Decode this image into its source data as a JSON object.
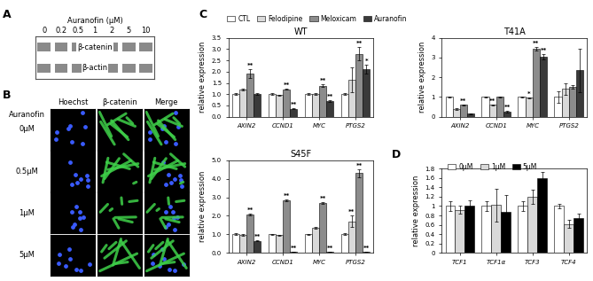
{
  "panel_labels": [
    "A",
    "B",
    "C",
    "D"
  ],
  "blot": {
    "label": "Auranofin (μM)",
    "doses": [
      "0",
      "0.2",
      "0.5",
      "1",
      "2",
      "5",
      "10"
    ],
    "rows": [
      "β-catenin",
      "β-actin"
    ]
  },
  "images": {
    "treatment": "Auranofin",
    "columns": [
      "Hoechst",
      "β-catenin",
      "Merge"
    ],
    "rows": [
      "0μM",
      "0.5μM",
      "1μM",
      "5μM"
    ]
  },
  "chart_data": [
    {
      "type": "bar",
      "title": "WT",
      "ylabel": "relative expression",
      "legend": "upper left",
      "categories": [
        "AXIN2",
        "CCND1",
        "MYC",
        "PTGS2"
      ],
      "ylim": [
        0,
        3.5
      ],
      "yticks": [
        {
          "value": 0,
          "label": "0.0"
        },
        {
          "value": 0.5,
          "label": "0.5"
        },
        {
          "value": 1,
          "label": "1.0"
        },
        {
          "value": 1.5,
          "label": "1.5"
        },
        {
          "value": 2,
          "label": "2.0"
        },
        {
          "value": 2.5,
          "label": "2.5"
        },
        {
          "value": 3,
          "label": "3.0"
        },
        {
          "value": 3.5,
          "label": "3.5"
        }
      ],
      "series": [
        {
          "name": "CTL",
          "color": "#ffffff",
          "values": [
            1.0,
            1.0,
            1.0,
            1.0
          ],
          "errors": [
            0.03,
            0.03,
            0.03,
            0.03
          ],
          "annotations": [
            null,
            null,
            null,
            null
          ]
        },
        {
          "name": "Felodipine",
          "color": "#d9d9d9",
          "values": [
            1.2,
            0.95,
            1.0,
            1.65
          ],
          "errors": [
            0.04,
            0.03,
            0.03,
            0.55
          ],
          "annotations": [
            null,
            null,
            null,
            null
          ]
        },
        {
          "name": "Meloxicam",
          "color": "#8c8c8c",
          "values": [
            1.92,
            1.22,
            1.38,
            2.8
          ],
          "errors": [
            0.2,
            0.03,
            0.05,
            0.3
          ],
          "annotations": [
            "**",
            "**",
            "**",
            "**"
          ]
        },
        {
          "name": "Auranofin",
          "color": "#3a3a3a",
          "values": [
            1.0,
            0.35,
            0.7,
            2.1
          ],
          "errors": [
            0.03,
            0.03,
            0.03,
            0.2
          ],
          "annotations": [
            null,
            "**",
            "**",
            "*"
          ]
        }
      ]
    },
    {
      "type": "bar",
      "title": "T41A",
      "ylabel": "relative expression",
      "categories": [
        "AXIN2",
        "CCND1",
        "MYC",
        "PTGS2"
      ],
      "ylim": [
        0,
        4
      ],
      "yticks": [
        0,
        1,
        2,
        3,
        4
      ],
      "series": [
        {
          "name": "CTL",
          "color": "#ffffff",
          "values": [
            1.0,
            1.0,
            1.0,
            1.0
          ],
          "errors": [
            0.03,
            0.03,
            0.03,
            0.3
          ],
          "annotations": [
            null,
            null,
            null,
            null
          ]
        },
        {
          "name": "Felodipine",
          "color": "#d9d9d9",
          "values": [
            0.38,
            0.6,
            0.95,
            1.4
          ],
          "errors": [
            0.03,
            0.03,
            0.03,
            0.3
          ],
          "annotations": [
            null,
            "**",
            "*",
            null
          ]
        },
        {
          "name": "Meloxicam",
          "color": "#8c8c8c",
          "values": [
            0.6,
            1.0,
            3.45,
            1.5
          ],
          "errors": [
            0.03,
            0.03,
            0.1,
            0.1
          ],
          "annotations": [
            "**",
            null,
            "**",
            null
          ]
        },
        {
          "name": "Auranofin",
          "color": "#3a3a3a",
          "values": [
            0.15,
            0.25,
            3.05,
            2.35
          ],
          "errors": [
            0.02,
            0.03,
            0.15,
            1.1
          ],
          "annotations": [
            null,
            "**",
            "**",
            null
          ]
        }
      ]
    },
    {
      "type": "bar",
      "title": "S45F",
      "ylabel": "relative expression",
      "categories": [
        "AXIN2",
        "CCND1",
        "MYC",
        "PTGS2"
      ],
      "ylim": [
        0,
        5
      ],
      "yticks": [
        {
          "value": 0,
          "label": "0.0"
        },
        {
          "value": 1,
          "label": "1.0"
        },
        {
          "value": 2,
          "label": "2.0"
        },
        {
          "value": 3,
          "label": "3.0"
        },
        {
          "value": 4,
          "label": "4.0"
        },
        {
          "value": 5,
          "label": "5.0"
        }
      ],
      "series": [
        {
          "name": "CTL",
          "color": "#ffffff",
          "values": [
            1.0,
            1.0,
            1.0,
            1.0
          ],
          "errors": [
            0.05,
            0.03,
            0.03,
            0.05
          ],
          "annotations": [
            null,
            null,
            null,
            null
          ]
        },
        {
          "name": "Felodipine",
          "color": "#d9d9d9",
          "values": [
            0.95,
            0.95,
            1.35,
            1.7
          ],
          "errors": [
            0.05,
            0.03,
            0.05,
            0.3
          ],
          "annotations": [
            null,
            null,
            null,
            "**"
          ]
        },
        {
          "name": "Meloxicam",
          "color": "#8c8c8c",
          "values": [
            2.05,
            2.85,
            2.7,
            4.3
          ],
          "errors": [
            0.05,
            0.05,
            0.05,
            0.2
          ],
          "annotations": [
            "**",
            "**",
            "**",
            "**"
          ]
        },
        {
          "name": "Auranofin",
          "color": "#3a3a3a",
          "values": [
            0.65,
            0.05,
            0.05,
            0.05
          ],
          "errors": [
            0.03,
            0.01,
            0.01,
            0.01
          ],
          "annotations": [
            "**",
            "**",
            "**",
            "**"
          ]
        }
      ]
    },
    {
      "type": "bar",
      "ylabel": "relative expression",
      "legend": "upper left",
      "categories": [
        "TCF1",
        "TCF1α",
        "TCF3",
        "TCF4"
      ],
      "ylim": [
        0,
        1.8
      ],
      "yticks": [
        0,
        0.2,
        0.4,
        0.6,
        0.8,
        1,
        1.2,
        1.4,
        1.6,
        1.8
      ],
      "series": [
        {
          "name": "0μM",
          "color": "#ffffff",
          "values": [
            1.0,
            1.0,
            1.0,
            1.0
          ],
          "errors": [
            0.1,
            0.1,
            0.1,
            0.05
          ]
        },
        {
          "name": "1μM",
          "color": "#d9d9d9",
          "values": [
            0.92,
            1.02,
            1.2,
            0.62
          ],
          "errors": [
            0.08,
            0.35,
            0.15,
            0.08
          ]
        },
        {
          "name": "5μM",
          "color": "#000000",
          "values": [
            1.0,
            0.88,
            1.6,
            0.75
          ],
          "errors": [
            0.12,
            0.35,
            0.12,
            0.08
          ]
        }
      ]
    }
  ]
}
